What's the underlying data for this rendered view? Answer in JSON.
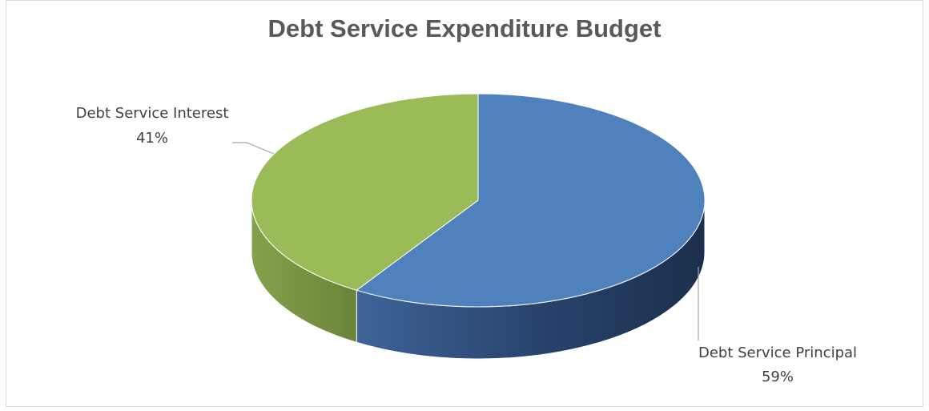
{
  "chart_data": {
    "type": "pie",
    "title": "Debt Service Expenditure Budget",
    "slices": [
      {
        "label": "Debt Service Principal",
        "value": 59,
        "value_label": "59%",
        "color": "#4f81bd"
      },
      {
        "label": "Debt Service Interest",
        "value": 41,
        "value_label": "41%",
        "color": "#9bbb59"
      }
    ],
    "style": "3d",
    "legend": "none"
  }
}
